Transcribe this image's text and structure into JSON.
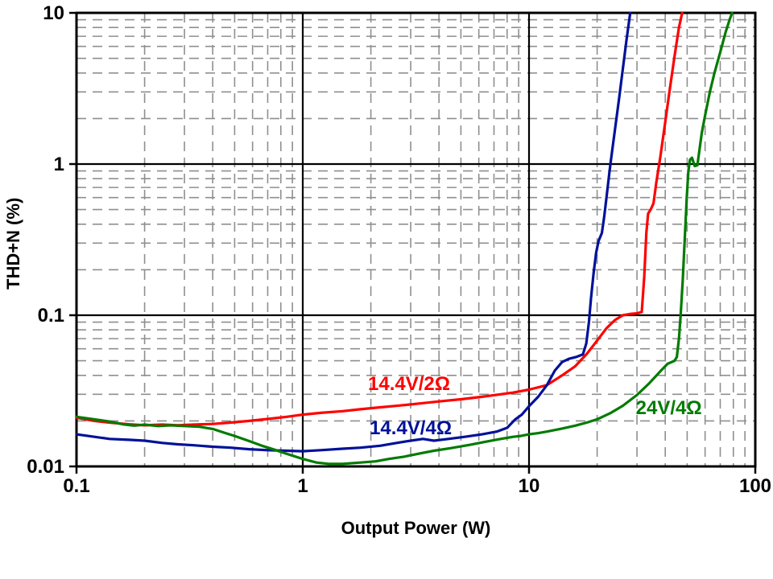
{
  "plot": {
    "background": "#ffffff",
    "axis_color": "#000000",
    "grid_major_color": "#000000",
    "grid_minor_color": "#8f8f8f",
    "grid_minor_style": "dashed"
  },
  "chart_data": {
    "type": "line",
    "title": "",
    "xlabel": "Output Power (W)",
    "ylabel": "THD+N (%)",
    "x_scale": "log",
    "y_scale": "log",
    "xlim": [
      0.1,
      100
    ],
    "ylim": [
      0.01,
      10
    ],
    "x_ticks": [
      0.1,
      1,
      10,
      100
    ],
    "x_tick_labels": [
      "0.1",
      "1",
      "10",
      "100"
    ],
    "y_ticks": [
      0.01,
      0.1,
      1,
      10
    ],
    "y_tick_labels": [
      "0.01",
      "0.1",
      "1",
      "10"
    ],
    "grid": {
      "major": true,
      "minor": true,
      "legend_position": "inline-annotations"
    },
    "series": [
      {
        "name": "14.4V/2Ω",
        "color": "#ff0000",
        "points": [
          [
            0.1,
            0.021
          ],
          [
            0.12,
            0.02
          ],
          [
            0.14,
            0.0195
          ],
          [
            0.17,
            0.019
          ],
          [
            0.2,
            0.0187
          ],
          [
            0.24,
            0.0189
          ],
          [
            0.28,
            0.0187
          ],
          [
            0.33,
            0.0189
          ],
          [
            0.4,
            0.0191
          ],
          [
            0.48,
            0.0195
          ],
          [
            0.58,
            0.02
          ],
          [
            0.7,
            0.0206
          ],
          [
            0.85,
            0.0213
          ],
          [
            1.0,
            0.022
          ],
          [
            1.2,
            0.0226
          ],
          [
            1.5,
            0.0232
          ],
          [
            1.8,
            0.0239
          ],
          [
            2.2,
            0.0246
          ],
          [
            2.7,
            0.0253
          ],
          [
            3.3,
            0.0261
          ],
          [
            4.0,
            0.0269
          ],
          [
            5.0,
            0.0278
          ],
          [
            6.0,
            0.0287
          ],
          [
            7.0,
            0.0296
          ],
          [
            8.5,
            0.0308
          ],
          [
            10,
            0.0322
          ],
          [
            12,
            0.0345
          ],
          [
            14,
            0.04
          ],
          [
            16,
            0.046
          ],
          [
            18,
            0.0555
          ],
          [
            20,
            0.068
          ],
          [
            22,
            0.082
          ],
          [
            24,
            0.093
          ],
          [
            26,
            0.1
          ],
          [
            28,
            0.102
          ],
          [
            30,
            0.103
          ],
          [
            31.5,
            0.105
          ],
          [
            32.3,
            0.18
          ],
          [
            33,
            0.35
          ],
          [
            33.6,
            0.47
          ],
          [
            34.5,
            0.5
          ],
          [
            35.5,
            0.55
          ],
          [
            36.5,
            0.75
          ],
          [
            38,
            1.1
          ],
          [
            40,
            1.9
          ],
          [
            42,
            3.2
          ],
          [
            44,
            5.2
          ],
          [
            46,
            8.0
          ],
          [
            47.5,
            10.0
          ]
        ]
      },
      {
        "name": "14.4V/4Ω",
        "color": "#001199",
        "points": [
          [
            0.1,
            0.0163
          ],
          [
            0.12,
            0.0157
          ],
          [
            0.14,
            0.0152
          ],
          [
            0.17,
            0.015
          ],
          [
            0.2,
            0.0148
          ],
          [
            0.24,
            0.0143
          ],
          [
            0.28,
            0.014
          ],
          [
            0.33,
            0.0138
          ],
          [
            0.4,
            0.0135
          ],
          [
            0.48,
            0.0133
          ],
          [
            0.58,
            0.013
          ],
          [
            0.7,
            0.0128
          ],
          [
            0.85,
            0.0127
          ],
          [
            1.0,
            0.0126
          ],
          [
            1.2,
            0.0128
          ],
          [
            1.5,
            0.0131
          ],
          [
            1.8,
            0.0133
          ],
          [
            2.2,
            0.0137
          ],
          [
            2.6,
            0.0143
          ],
          [
            3.0,
            0.0148
          ],
          [
            3.4,
            0.0152
          ],
          [
            3.8,
            0.0148
          ],
          [
            4.4,
            0.0152
          ],
          [
            5.2,
            0.0157
          ],
          [
            6.2,
            0.0163
          ],
          [
            7.2,
            0.017
          ],
          [
            8.0,
            0.018
          ],
          [
            8.7,
            0.0205
          ],
          [
            9.3,
            0.022
          ],
          [
            10,
            0.025
          ],
          [
            11,
            0.029
          ],
          [
            12,
            0.0345
          ],
          [
            13,
            0.043
          ],
          [
            14,
            0.049
          ],
          [
            15,
            0.0515
          ],
          [
            16.2,
            0.053
          ],
          [
            17.3,
            0.055
          ],
          [
            17.9,
            0.065
          ],
          [
            18.4,
            0.09
          ],
          [
            18.8,
            0.13
          ],
          [
            19.3,
            0.19
          ],
          [
            19.8,
            0.26
          ],
          [
            20.3,
            0.31
          ],
          [
            21,
            0.35
          ],
          [
            21.5,
            0.45
          ],
          [
            22,
            0.6
          ],
          [
            22.6,
            0.85
          ],
          [
            23,
            1.05
          ],
          [
            24,
            1.7
          ],
          [
            25,
            2.7
          ],
          [
            26,
            4.3
          ],
          [
            27,
            6.7
          ],
          [
            28,
            10.0
          ]
        ]
      },
      {
        "name": "24V/4Ω",
        "color": "#007b00",
        "points": [
          [
            0.1,
            0.0213
          ],
          [
            0.12,
            0.0205
          ],
          [
            0.14,
            0.0198
          ],
          [
            0.16,
            0.019
          ],
          [
            0.18,
            0.0186
          ],
          [
            0.2,
            0.0189
          ],
          [
            0.23,
            0.0185
          ],
          [
            0.26,
            0.0187
          ],
          [
            0.3,
            0.0185
          ],
          [
            0.35,
            0.0183
          ],
          [
            0.4,
            0.0177
          ],
          [
            0.45,
            0.0167
          ],
          [
            0.5,
            0.0159
          ],
          [
            0.58,
            0.0147
          ],
          [
            0.66,
            0.0137
          ],
          [
            0.75,
            0.0129
          ],
          [
            0.85,
            0.0121
          ],
          [
            1.0,
            0.0112
          ],
          [
            1.15,
            0.0106
          ],
          [
            1.3,
            0.0104
          ],
          [
            1.5,
            0.0104
          ],
          [
            1.8,
            0.0106
          ],
          [
            2.1,
            0.0108
          ],
          [
            2.4,
            0.0112
          ],
          [
            2.8,
            0.0116
          ],
          [
            3.3,
            0.0122
          ],
          [
            3.8,
            0.0127
          ],
          [
            4.5,
            0.0132
          ],
          [
            5.5,
            0.0139
          ],
          [
            6.5,
            0.0146
          ],
          [
            7.5,
            0.0152
          ],
          [
            8.5,
            0.0157
          ],
          [
            9.2,
            0.0159
          ],
          [
            10,
            0.0163
          ],
          [
            11,
            0.0166
          ],
          [
            12,
            0.017
          ],
          [
            14,
            0.0178
          ],
          [
            16,
            0.0186
          ],
          [
            18,
            0.0195
          ],
          [
            20,
            0.0205
          ],
          [
            23,
            0.0226
          ],
          [
            26,
            0.0252
          ],
          [
            30,
            0.0297
          ],
          [
            34,
            0.0355
          ],
          [
            38,
            0.0425
          ],
          [
            41,
            0.0478
          ],
          [
            44,
            0.05
          ],
          [
            45,
            0.053
          ],
          [
            46,
            0.07
          ],
          [
            46.8,
            0.1
          ],
          [
            47.8,
            0.17
          ],
          [
            48.8,
            0.32
          ],
          [
            49.8,
            0.6
          ],
          [
            50.6,
            0.9
          ],
          [
            51.5,
            1.07
          ],
          [
            52.5,
            1.1
          ],
          [
            54,
            0.97
          ],
          [
            55.5,
            0.98
          ],
          [
            56.5,
            1.2
          ],
          [
            58,
            1.6
          ],
          [
            60,
            2.1
          ],
          [
            63,
            3.0
          ],
          [
            66,
            4.0
          ],
          [
            70,
            5.5
          ],
          [
            74,
            7.5
          ],
          [
            77,
            9.0
          ],
          [
            79,
            10.0
          ]
        ]
      }
    ],
    "annotations": [
      {
        "text": "14.4V/2Ω",
        "color": "#ff0000",
        "x": 2.95,
        "y": 0.0353
      },
      {
        "text": "14.4V/4Ω",
        "color": "#001199",
        "x": 3.0,
        "y": 0.018
      },
      {
        "text": "24V/4Ω",
        "color": "#007b00",
        "x": 41.5,
        "y": 0.0245
      }
    ]
  }
}
